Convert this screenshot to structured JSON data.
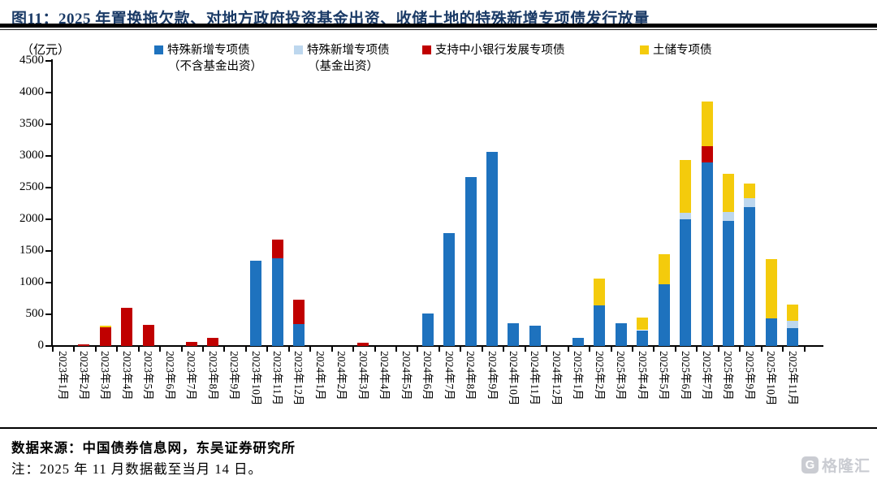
{
  "title": "图11：2025 年置换拖欠款、对地方政府投资基金出资、收储土地的特殊新增专项债发行放量",
  "y_unit_label": "（亿元）",
  "legend": {
    "items": [
      {
        "line1": "特殊新增专项债",
        "line2": "（不含基金出资）",
        "color": "#1E72BE"
      },
      {
        "line1": "特殊新增专项债",
        "line2": "（基金出资）",
        "color": "#BDD7EE"
      },
      {
        "line1": "支持中小银行发展专项债",
        "line2": "",
        "color": "#C00000"
      },
      {
        "line1": "土储专项债",
        "line2": "",
        "color": "#F4CB0C"
      }
    ]
  },
  "footer": {
    "source": "数据来源：中国债券信息网，东吴证券研究所",
    "note": "注：2025 年 11 月数据截至当月 14 日。"
  },
  "watermark": {
    "initial": "G",
    "brand": "格隆汇"
  },
  "chart_data": {
    "type": "bar",
    "stacked": true,
    "title": "2025 年置换拖欠款、对地方政府投资基金出资、收储土地的特殊新增专项债发行放量",
    "xlabel": "",
    "ylabel": "亿元",
    "ylim": [
      0,
      4500
    ],
    "ytick_step": 500,
    "grid": false,
    "legend_position": "top",
    "categories": [
      "2023年1月",
      "2023年2月",
      "2023年3月",
      "2023年4月",
      "2023年5月",
      "2023年6月",
      "2023年7月",
      "2023年8月",
      "2023年9月",
      "2023年10月",
      "2023年11月",
      "2023年12月",
      "2024年1月",
      "2024年2月",
      "2024年3月",
      "2024年4月",
      "2024年5月",
      "2024年6月",
      "2024年7月",
      "2024年8月",
      "2024年9月",
      "2024年10月",
      "2024年11月",
      "2024年12月",
      "2025年1月",
      "2025年2月",
      "2025年3月",
      "2025年4月",
      "2025年5月",
      "2025年6月",
      "2025年7月",
      "2025年8月",
      "2025年9月",
      "2025年10月",
      "2025年11月"
    ],
    "series": [
      {
        "name": "特殊新增专项债（不含基金出资）",
        "color": "#1E72BE",
        "values": [
          0,
          0,
          0,
          0,
          0,
          0,
          0,
          0,
          0,
          1350,
          1390,
          350,
          0,
          0,
          0,
          0,
          0,
          515,
          1780,
          2670,
          3060,
          355,
          325,
          0,
          130,
          640,
          355,
          250,
          975,
          2000,
          2895,
          1970,
          2190,
          440,
          280
        ]
      },
      {
        "name": "特殊新增专项债（基金出资）",
        "color": "#BDD7EE",
        "values": [
          0,
          0,
          0,
          0,
          0,
          0,
          0,
          0,
          0,
          0,
          0,
          0,
          0,
          0,
          0,
          0,
          0,
          0,
          0,
          0,
          0,
          0,
          0,
          0,
          0,
          0,
          0,
          0,
          0,
          105,
          0,
          150,
          140,
          0,
          115
        ]
      },
      {
        "name": "支持中小银行发展专项债",
        "color": "#C00000",
        "values": [
          0,
          30,
          290,
          600,
          335,
          0,
          70,
          130,
          0,
          0,
          290,
          380,
          0,
          0,
          55,
          0,
          0,
          0,
          0,
          0,
          0,
          0,
          0,
          0,
          0,
          0,
          0,
          0,
          0,
          0,
          265,
          0,
          0,
          0,
          0
        ]
      },
      {
        "name": "土储专项债",
        "color": "#F4CB0C",
        "values": [
          0,
          0,
          30,
          0,
          0,
          0,
          0,
          0,
          0,
          0,
          0,
          0,
          0,
          0,
          0,
          0,
          0,
          0,
          0,
          0,
          0,
          0,
          0,
          0,
          0,
          430,
          0,
          200,
          470,
          825,
          695,
          595,
          235,
          930,
          260
        ]
      }
    ]
  }
}
